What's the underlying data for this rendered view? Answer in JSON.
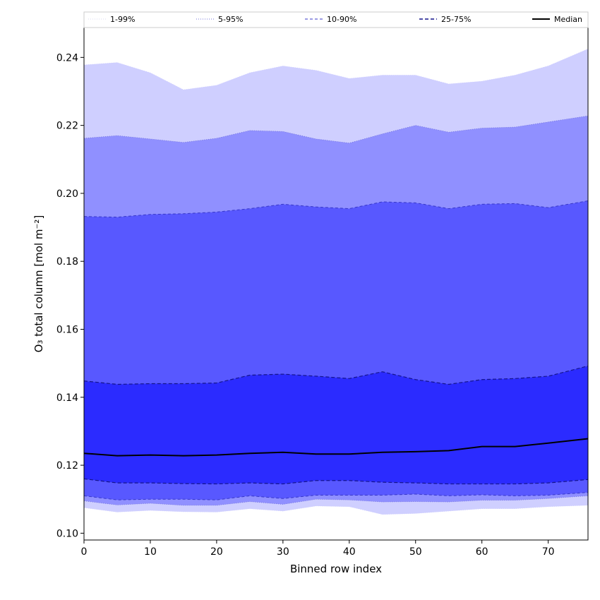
{
  "chart_data": {
    "type": "area",
    "xlabel": "Binned row index",
    "ylabel": "O₃ total column [mol m⁻²]",
    "xlim": [
      0,
      76
    ],
    "ylim": [
      0.098,
      0.249
    ],
    "x_ticks": [
      0,
      10,
      20,
      30,
      40,
      50,
      60,
      70
    ],
    "y_ticks": [
      0.1,
      0.12,
      0.14,
      0.16,
      0.18,
      0.2,
      0.22,
      0.24
    ],
    "grid": false,
    "legend_position": "top",
    "legend": [
      "1-99%",
      "5-95%",
      "10-90%",
      "25-75%",
      "Median"
    ],
    "colors": {
      "band_1_99": "#cfcfff",
      "band_5_95": "#9090ff",
      "band_10_90": "#5858ff",
      "band_25_75": "#2b2bff",
      "median": "#000000",
      "edge_5_95": "#7070d8",
      "edge_10_90": "#3838c8",
      "edge_25_75": "#14148c"
    },
    "series": [
      {
        "name": "1-99%",
        "x": [
          0,
          5,
          10,
          15,
          20,
          25,
          30,
          35,
          40,
          45,
          50,
          55,
          60,
          65,
          70,
          76
        ],
        "lower": [
          0.1075,
          0.1062,
          0.1067,
          0.1063,
          0.1062,
          0.1072,
          0.1065,
          0.108,
          0.1078,
          0.1055,
          0.1058,
          0.1065,
          0.1072,
          0.1072,
          0.1078,
          0.1082
        ],
        "upper": [
          0.2378,
          0.2385,
          0.2355,
          0.2305,
          0.2318,
          0.2355,
          0.2375,
          0.2362,
          0.2338,
          0.2348,
          0.2348,
          0.2322,
          0.233,
          0.2348,
          0.2375,
          0.2425
        ]
      },
      {
        "name": "5-95%",
        "x": [
          0,
          5,
          10,
          15,
          20,
          25,
          30,
          35,
          40,
          45,
          50,
          55,
          60,
          65,
          70,
          76
        ],
        "lower": [
          0.1095,
          0.1083,
          0.1088,
          0.1082,
          0.1082,
          0.1093,
          0.1085,
          0.11,
          0.1098,
          0.1092,
          0.1093,
          0.1092,
          0.1097,
          0.1097,
          0.1102,
          0.111
        ],
        "upper": [
          0.2162,
          0.217,
          0.216,
          0.215,
          0.2162,
          0.2185,
          0.2182,
          0.216,
          0.2148,
          0.2175,
          0.22,
          0.218,
          0.2192,
          0.2195,
          0.221,
          0.2228
        ]
      },
      {
        "name": "10-90%",
        "x": [
          0,
          5,
          10,
          15,
          20,
          25,
          30,
          35,
          40,
          45,
          50,
          55,
          60,
          65,
          70,
          76
        ],
        "lower": [
          0.111,
          0.1098,
          0.11,
          0.11,
          0.1098,
          0.111,
          0.1102,
          0.1112,
          0.1112,
          0.1112,
          0.1115,
          0.111,
          0.1113,
          0.111,
          0.1112,
          0.112
        ],
        "upper": [
          0.1932,
          0.193,
          0.1938,
          0.194,
          0.1945,
          0.1955,
          0.1968,
          0.196,
          0.1955,
          0.1975,
          0.1972,
          0.1955,
          0.1968,
          0.197,
          0.1958,
          0.1978
        ]
      },
      {
        "name": "25-75%",
        "x": [
          0,
          5,
          10,
          15,
          20,
          25,
          30,
          35,
          40,
          45,
          50,
          55,
          60,
          65,
          70,
          76
        ],
        "lower": [
          0.116,
          0.1148,
          0.1148,
          0.1146,
          0.1145,
          0.1148,
          0.1145,
          0.1155,
          0.1155,
          0.115,
          0.1148,
          0.1145,
          0.1145,
          0.1145,
          0.1148,
          0.1158
        ],
        "upper": [
          0.1448,
          0.1438,
          0.144,
          0.144,
          0.1442,
          0.1465,
          0.1468,
          0.1462,
          0.1455,
          0.1475,
          0.1452,
          0.1438,
          0.1452,
          0.1455,
          0.1462,
          0.1492
        ]
      },
      {
        "name": "Median",
        "x": [
          0,
          5,
          10,
          15,
          20,
          25,
          30,
          35,
          40,
          45,
          50,
          55,
          60,
          65,
          70,
          76
        ],
        "values": [
          0.1235,
          0.1228,
          0.123,
          0.1228,
          0.123,
          0.1235,
          0.1238,
          0.1233,
          0.1233,
          0.1238,
          0.124,
          0.1243,
          0.1255,
          0.1255,
          0.1265,
          0.1278
        ]
      }
    ]
  }
}
